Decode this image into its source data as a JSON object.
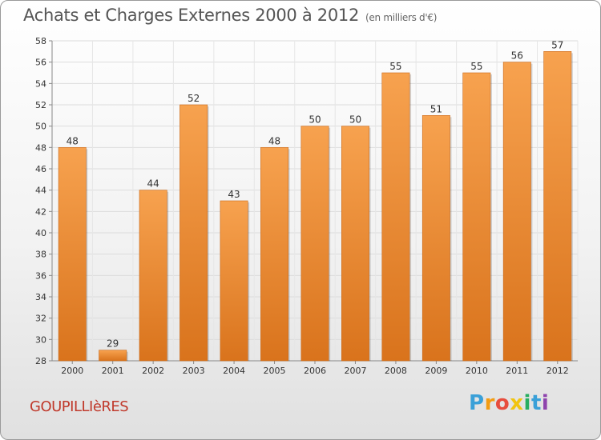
{
  "header": {
    "title": "Achats et Charges Externes 2000 à 2012",
    "subtitle": "(en milliers d'€)"
  },
  "location": "GOUPILLIèRES",
  "brand": {
    "letters": [
      "P",
      "r",
      "o",
      "x",
      "i",
      "t",
      "i"
    ],
    "colors": [
      "#3aa0d8",
      "#f39c12",
      "#e74c3c",
      "#f1c40f",
      "#27ae60",
      "#3aa0d8",
      "#8e44ad"
    ]
  },
  "chart_data": {
    "type": "bar",
    "title": "Achats et Charges Externes 2000 à 2012",
    "subtitle": "(en milliers d'€)",
    "categories": [
      "2000",
      "2001",
      "2002",
      "2003",
      "2004",
      "2005",
      "2006",
      "2007",
      "2008",
      "2009",
      "2010",
      "2011",
      "2012"
    ],
    "values": [
      48,
      29,
      44,
      52,
      43,
      48,
      50,
      50,
      55,
      51,
      55,
      56,
      57
    ],
    "ylim": [
      28,
      58
    ],
    "yticks": [
      28,
      30,
      32,
      34,
      36,
      38,
      40,
      42,
      44,
      46,
      48,
      50,
      52,
      54,
      56,
      58
    ],
    "xlabel": "",
    "ylabel": "",
    "grid": true,
    "bar_color": "#f0923a"
  }
}
